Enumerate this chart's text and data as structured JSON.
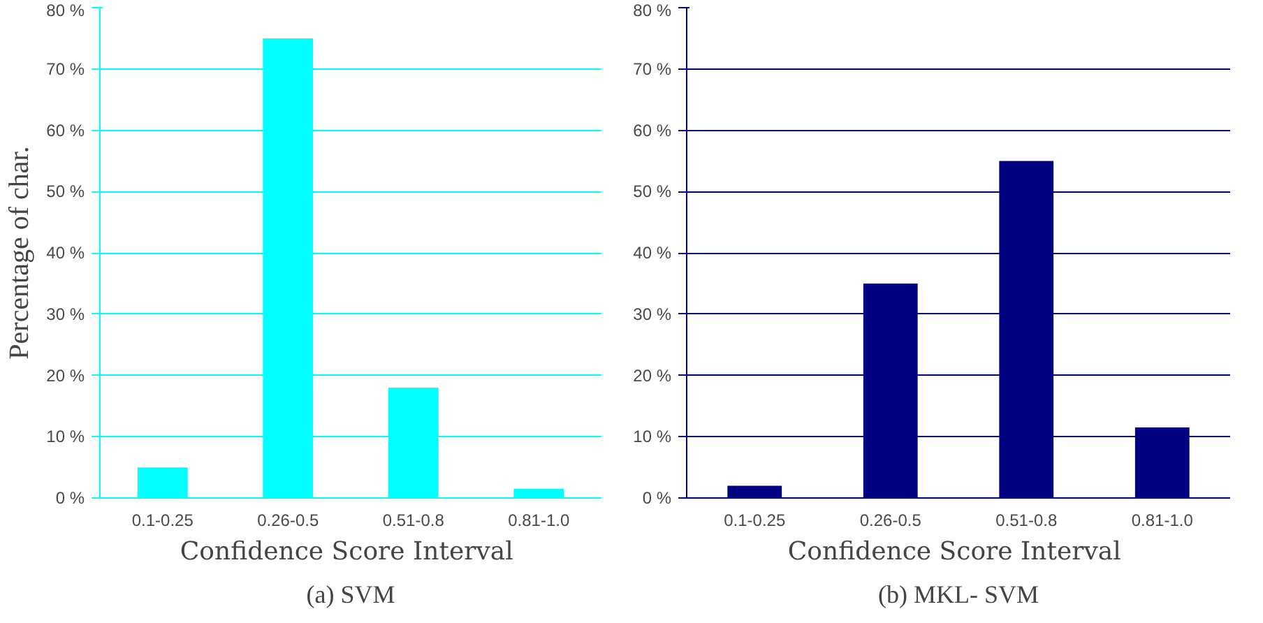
{
  "chart_data": [
    {
      "type": "bar",
      "title": "(a) SVM",
      "xlabel": "Confidence Score  Interval",
      "ylabel": "Percentage of char.",
      "categories": [
        "0.1-0.25",
        "0.26-0.5",
        "0.51-0.8",
        "0.81-1.0"
      ],
      "values": [
        5,
        75,
        18,
        1.5
      ],
      "color": "#00ffff",
      "ylim": [
        0,
        80
      ],
      "yticks": [
        {
          "value": 0,
          "label": "0 %"
        },
        {
          "value": 10,
          "label": "10 %"
        },
        {
          "value": 20,
          "label": "20 %"
        },
        {
          "value": 30,
          "label": "30 %"
        },
        {
          "value": 40,
          "label": "40 %"
        },
        {
          "value": 50,
          "label": "50 %"
        },
        {
          "value": 60,
          "label": "60 %"
        },
        {
          "value": 70,
          "label": "70 %"
        },
        {
          "value": 80,
          "label": "80 %"
        }
      ],
      "grid": "y"
    },
    {
      "type": "bar",
      "title": "(b) MKL- SVM",
      "xlabel": "Confidence Score  Interval",
      "categories": [
        "0.1-0.25",
        "0.26-0.5",
        "0.51-0.8",
        "0.81-1.0"
      ],
      "values": [
        2,
        35,
        55,
        11.5
      ],
      "color": "#000080",
      "ylim": [
        0,
        80
      ],
      "yticks": [
        {
          "value": 0,
          "label": "0 %"
        },
        {
          "value": 10,
          "label": "10 %"
        },
        {
          "value": 20,
          "label": "20 %"
        },
        {
          "value": 30,
          "label": "30 %"
        },
        {
          "value": 40,
          "label": "40 %"
        },
        {
          "value": 50,
          "label": "50 %"
        },
        {
          "value": 60,
          "label": "60 %"
        },
        {
          "value": 70,
          "label": "70 %"
        },
        {
          "value": 80,
          "label": "80 %"
        }
      ],
      "grid": "y"
    }
  ]
}
